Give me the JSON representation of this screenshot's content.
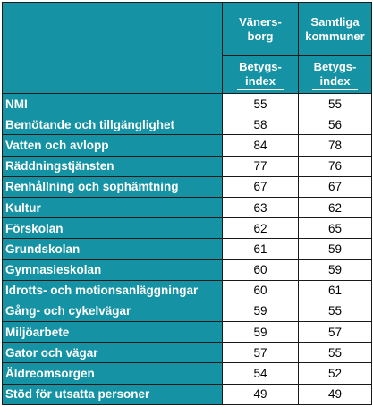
{
  "header": {
    "col1_name_line1": "Väners-",
    "col1_name_line2": "borg",
    "col2_name_line1": "Samtliga",
    "col2_name_line2": "kommuner",
    "col1_sub_line1": "Betygs-",
    "col1_sub_line2": "index",
    "col2_sub_line1": "Betygs-",
    "col2_sub_line2": "index"
  },
  "rows": [
    {
      "label": "NMI",
      "vanersborg": "55",
      "samtliga": "55"
    },
    {
      "label": "Bemötande och tillgänglighet",
      "vanersborg": "58",
      "samtliga": "56"
    },
    {
      "label": "Vatten och avlopp",
      "vanersborg": "84",
      "samtliga": "78"
    },
    {
      "label": "Räddningstjänsten",
      "vanersborg": "77",
      "samtliga": "76"
    },
    {
      "label": "Renhållning och sophämtning",
      "vanersborg": "67",
      "samtliga": "67"
    },
    {
      "label": "Kultur",
      "vanersborg": "63",
      "samtliga": "62"
    },
    {
      "label": "Förskolan",
      "vanersborg": "62",
      "samtliga": "65"
    },
    {
      "label": "Grundskolan",
      "vanersborg": "61",
      "samtliga": "59"
    },
    {
      "label": "Gymnasieskolan",
      "vanersborg": "60",
      "samtliga": "59"
    },
    {
      "label": "Idrotts- och motionsanläggningar",
      "vanersborg": "60",
      "samtliga": "61"
    },
    {
      "label": "Gång- och cykelvägar",
      "vanersborg": "59",
      "samtliga": "55"
    },
    {
      "label": "Miljöarbete",
      "vanersborg": "59",
      "samtliga": "57"
    },
    {
      "label": "Gator och vägar",
      "vanersborg": "57",
      "samtliga": "55"
    },
    {
      "label": "Äldreomsorgen",
      "vanersborg": "54",
      "samtliga": "52"
    },
    {
      "label": "Stöd för utsatta personer",
      "vanersborg": "49",
      "samtliga": "49"
    }
  ],
  "colors": {
    "header_bg": "#1593a5",
    "header_text": "#ffffff",
    "cell_bg": "#ffffff"
  }
}
